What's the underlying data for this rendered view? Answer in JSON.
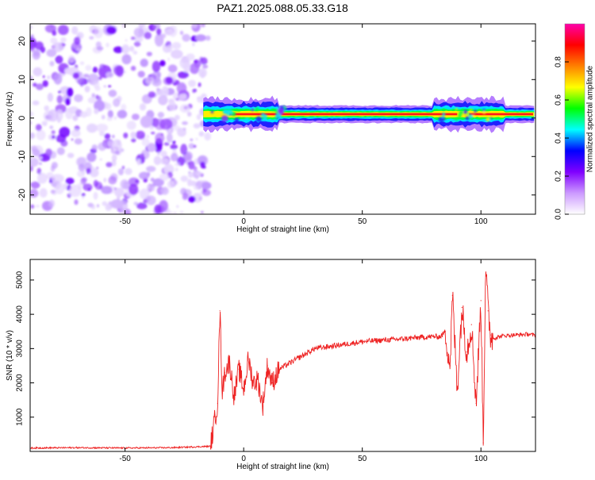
{
  "page": {
    "title": "PAZ1.2025.088.05.33.G18"
  },
  "chart_data": [
    {
      "type": "heatmap",
      "xlabel": "Height of straight line (km)",
      "ylabel": "Frequency (Hz)",
      "xlim": [
        -90,
        123
      ],
      "ylim": [
        -25,
        24.5
      ],
      "xticks": [
        -50,
        0,
        50,
        100
      ],
      "yticks": [
        -20,
        -10,
        0,
        10,
        20
      ],
      "colorbar": {
        "label": "Normalized spectral amplitude",
        "range": [
          0,
          1
        ],
        "ticks": [
          0.0,
          0.2,
          0.4,
          0.6,
          0.8
        ],
        "tick_labels": [
          "0.0",
          "0.2",
          "0.4",
          "0.6",
          "0.8"
        ],
        "colors": [
          "#ffffff",
          "#cc99ff",
          "#8000ff",
          "#0000ff",
          "#00ffff",
          "#00ff00",
          "#ffff00",
          "#ff8000",
          "#ff0000",
          "#ff00aa"
        ]
      },
      "regions": [
        {
          "x": [
            -90,
            -17
          ],
          "y": [
            -25,
            24.5
          ],
          "pattern": "scattered noise",
          "amplitude": [
            0.0,
            0.15
          ]
        },
        {
          "x": [
            -17,
            123
          ],
          "y_center": 1.0,
          "pattern": "narrow tone band",
          "amplitude_peak": 0.9
        }
      ],
      "grid": false
    },
    {
      "type": "line",
      "xlabel": "Height of straight line (km)",
      "ylabel": "SNR (10 * v/v)",
      "xlim": [
        -90,
        123
      ],
      "ylim": [
        0,
        5600
      ],
      "xticks": [
        -50,
        0,
        50,
        100
      ],
      "yticks": [
        1000,
        2000,
        3000,
        4000,
        5000
      ],
      "line_color": "#ee2222",
      "grid": false,
      "series": [
        {
          "x": [
            -90,
            -70,
            -50,
            -30,
            -14,
            -12,
            -11,
            -10,
            -9,
            -8,
            -6,
            -4,
            -2,
            0,
            2,
            4,
            6,
            8,
            10,
            12,
            15,
            20,
            25,
            30,
            35,
            40,
            45,
            50,
            55,
            60,
            65,
            70,
            75,
            80,
            83,
            85,
            87,
            88,
            90,
            92,
            94,
            96,
            98,
            100,
            101,
            102,
            103,
            104,
            105,
            108,
            110,
            115,
            120,
            123
          ],
          "values": [
            100,
            110,
            100,
            110,
            150,
            1000,
            1400,
            4100,
            1700,
            2300,
            2600,
            1600,
            2400,
            1800,
            2700,
            2000,
            2100,
            1300,
            2500,
            2000,
            2400,
            2600,
            2800,
            3000,
            3050,
            3100,
            3150,
            3200,
            3230,
            3250,
            3270,
            3300,
            3330,
            3350,
            3350,
            3500,
            2500,
            4550,
            1800,
            4200,
            2900,
            3700,
            1400,
            4400,
            250,
            5600,
            4100,
            3400,
            3300,
            3350,
            3380,
            3400,
            3420,
            3380
          ]
        }
      ]
    }
  ]
}
